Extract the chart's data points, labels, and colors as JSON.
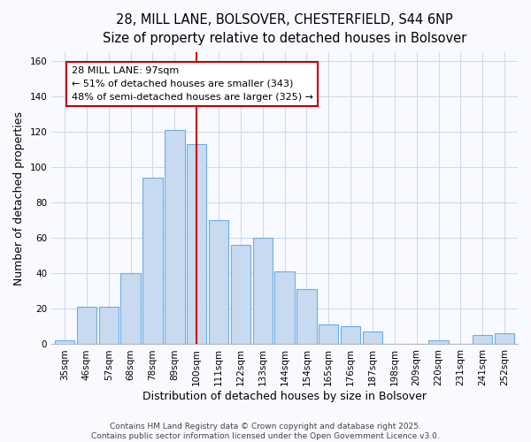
{
  "title_line1": "28, MILL LANE, BOLSOVER, CHESTERFIELD, S44 6NP",
  "title_line2": "Size of property relative to detached houses in Bolsover",
  "xlabel": "Distribution of detached houses by size in Bolsover",
  "ylabel": "Number of detached properties",
  "categories": [
    "35sqm",
    "46sqm",
    "57sqm",
    "68sqm",
    "78sqm",
    "89sqm",
    "100sqm",
    "111sqm",
    "122sqm",
    "133sqm",
    "144sqm",
    "154sqm",
    "165sqm",
    "176sqm",
    "187sqm",
    "198sqm",
    "209sqm",
    "220sqm",
    "231sqm",
    "241sqm",
    "252sqm"
  ],
  "values": [
    2,
    21,
    21,
    40,
    94,
    121,
    113,
    70,
    56,
    60,
    41,
    31,
    11,
    10,
    7,
    0,
    0,
    2,
    0,
    5,
    6
  ],
  "bar_color": "#c8daf0",
  "bar_edge_color": "#6aaee8",
  "vline_index": 6,
  "vline_label": "28 MILL LANE: 97sqm",
  "annotation_line1": "← 51% of detached houses are smaller (343)",
  "annotation_line2": "48% of semi-detached houses are larger (325) →",
  "annotation_text_color": "#000000",
  "annotation_border_color": "#c00000",
  "ylim": [
    0,
    165
  ],
  "yticks": [
    0,
    20,
    40,
    60,
    80,
    100,
    120,
    140,
    160
  ],
  "footer": "Contains HM Land Registry data © Crown copyright and database right 2025.\nContains public sector information licensed under the Open Government Licence v3.0.",
  "background_color": "#f8faff",
  "plot_background": "#f8faff",
  "grid_color": "#d0daf0",
  "title_fontsize": 10.5,
  "subtitle_fontsize": 9.5,
  "axis_label_fontsize": 9,
  "tick_fontsize": 7.5,
  "annotation_fontsize": 8,
  "footer_fontsize": 6.5
}
